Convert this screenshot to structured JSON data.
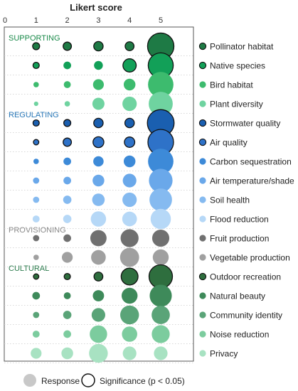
{
  "chart_data": {
    "type": "bubble-matrix",
    "title": "",
    "xlabel": "Likert score",
    "x_ticks": [
      "0",
      "1",
      "2",
      "3",
      "4",
      "5"
    ],
    "xlim": [
      0,
      5.6
    ],
    "groups": [
      {
        "name": "SUPPORTING",
        "color": "#1a8a4a"
      },
      {
        "name": "REGULATING",
        "color": "#2a78b8"
      },
      {
        "name": "PROVISIONING",
        "color": "#8a8a8a"
      },
      {
        "name": "CULTURAL",
        "color": "#2e7d4f"
      }
    ],
    "rows": [
      {
        "label": "Pollinator habitat",
        "group": 0,
        "color": "#1e7a45",
        "legend_sig": true,
        "responses": [
          0.05,
          0.07,
          0.09,
          0.08,
          0.71
        ],
        "significant": [
          true,
          true,
          true,
          true,
          true
        ]
      },
      {
        "label": "Native species",
        "group": 0,
        "color": "#12a058",
        "legend_sig": true,
        "responses": [
          0.04,
          0.06,
          0.08,
          0.18,
          0.64
        ],
        "significant": [
          true,
          false,
          false,
          true,
          true
        ]
      },
      {
        "label": "Bird habitat",
        "group": 0,
        "color": "#3dbb6e",
        "responses": [
          0.03,
          0.05,
          0.12,
          0.14,
          0.66
        ],
        "significant": [
          false,
          false,
          false,
          false,
          false
        ]
      },
      {
        "label": "Plant diversity",
        "group": 0,
        "color": "#6fd3a0",
        "responses": [
          0.02,
          0.03,
          0.15,
          0.21,
          0.59
        ],
        "significant": [
          false,
          false,
          false,
          false,
          false
        ]
      },
      {
        "label": "Stormwater quality",
        "group": 1,
        "color": "#1a5fb0",
        "legend_sig": true,
        "responses": [
          0.04,
          0.05,
          0.09,
          0.09,
          0.73
        ],
        "significant": [
          true,
          true,
          true,
          true,
          true
        ]
      },
      {
        "label": "Air quality",
        "group": 1,
        "color": "#2e72c8",
        "legend_sig": true,
        "responses": [
          0.03,
          0.07,
          0.12,
          0.11,
          0.67
        ],
        "significant": [
          true,
          true,
          true,
          true,
          true
        ]
      },
      {
        "label": "Carbon sequestration",
        "group": 1,
        "color": "#3d8ad8",
        "responses": [
          0.03,
          0.06,
          0.11,
          0.14,
          0.66
        ],
        "significant": [
          false,
          false,
          false,
          false,
          false
        ]
      },
      {
        "label": "Air temperature/shade",
        "group": 1,
        "color": "#6aa8ea",
        "responses": [
          0.04,
          0.06,
          0.14,
          0.19,
          0.57
        ],
        "significant": [
          false,
          false,
          false,
          false,
          false
        ]
      },
      {
        "label": "Soil health",
        "group": 1,
        "color": "#85baf0",
        "responses": [
          0.04,
          0.07,
          0.16,
          0.21,
          0.52
        ],
        "significant": [
          false,
          false,
          false,
          false,
          false
        ]
      },
      {
        "label": "Flood reduction",
        "group": 1,
        "color": "#b6d8f7",
        "responses": [
          0.05,
          0.07,
          0.24,
          0.22,
          0.42
        ],
        "significant": [
          false,
          false,
          false,
          false,
          false
        ]
      },
      {
        "label": "Fruit production",
        "group": 2,
        "color": "#707070",
        "responses": [
          0.04,
          0.06,
          0.27,
          0.33,
          0.3
        ],
        "significant": [
          false,
          false,
          false,
          false,
          false
        ]
      },
      {
        "label": "Vegetable production",
        "group": 2,
        "color": "#a0a0a0",
        "responses": [
          0.03,
          0.12,
          0.22,
          0.37,
          0.26
        ],
        "significant": [
          false,
          false,
          false,
          false,
          false
        ]
      },
      {
        "label": "Outdoor recreation",
        "group": 3,
        "color": "#2e6e3e",
        "legend_sig": true,
        "responses": [
          0.03,
          0.04,
          0.08,
          0.29,
          0.56
        ],
        "significant": [
          true,
          true,
          true,
          true,
          true
        ]
      },
      {
        "label": "Natural beauty",
        "group": 3,
        "color": "#3e8a5a",
        "responses": [
          0.06,
          0.05,
          0.13,
          0.26,
          0.5
        ],
        "significant": [
          false,
          false,
          false,
          false,
          false
        ]
      },
      {
        "label": "Community identity",
        "group": 3,
        "color": "#5aa478",
        "responses": [
          0.04,
          0.07,
          0.19,
          0.36,
          0.34
        ],
        "significant": [
          false,
          false,
          false,
          false,
          false
        ]
      },
      {
        "label": "Noise reduction",
        "group": 3,
        "color": "#7ccc9e",
        "responses": [
          0.05,
          0.06,
          0.31,
          0.24,
          0.33
        ],
        "significant": [
          false,
          false,
          false,
          false,
          false
        ]
      },
      {
        "label": "Privacy",
        "group": 3,
        "color": "#a8e2c2",
        "responses": [
          0.12,
          0.14,
          0.36,
          0.19,
          0.19
        ],
        "significant": [
          false,
          false,
          false,
          false,
          false
        ]
      }
    ],
    "legend": {
      "response_label": "Response",
      "significance_label": "Significance (p < 0.05)",
      "response_color": "#c8c8c8"
    }
  }
}
